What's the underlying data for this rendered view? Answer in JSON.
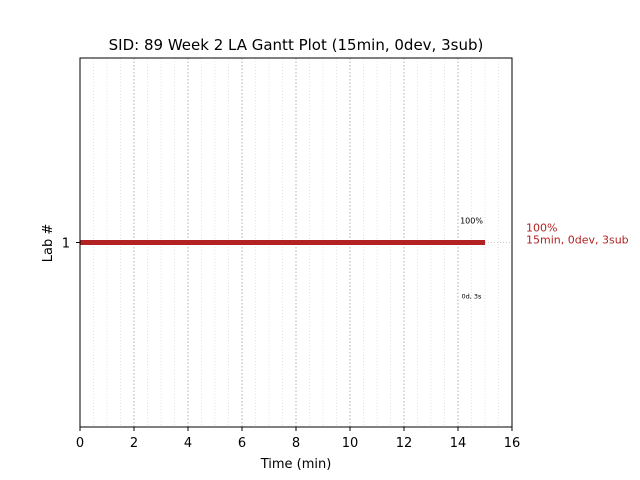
{
  "chart_data": {
    "type": "bar",
    "title": "SID: 89 Week 2 LA Gantt Plot (15min, 0dev, 3sub)",
    "xlabel": "Time (min)",
    "ylabel": "Lab #",
    "xlim": [
      0,
      16
    ],
    "xticks": [
      "0",
      "2",
      "4",
      "6",
      "8",
      "10",
      "12",
      "14",
      "16"
    ],
    "grid": true,
    "orientation": "horizontal",
    "categories": [
      "1"
    ],
    "bars": [
      {
        "lab": "1",
        "start": 0,
        "end": 15,
        "color": "#b22222",
        "label_above": "100%",
        "label_below": "0d, 3s",
        "side_label_line1": "100%",
        "side_label_line2": "15min, 0dev, 3sub"
      }
    ]
  }
}
